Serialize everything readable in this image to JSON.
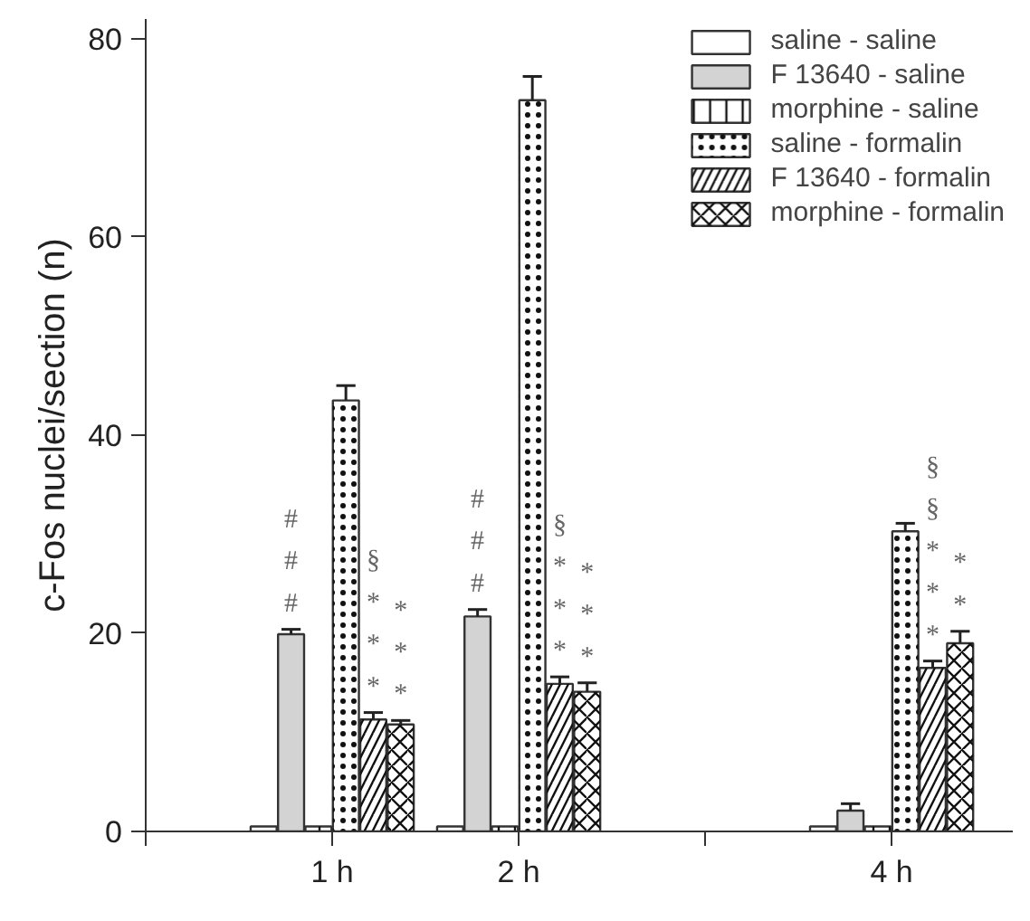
{
  "chart_data": {
    "type": "bar",
    "ylabel": "c-Fos nuclei/section (n)",
    "x": [
      1,
      2,
      4
    ],
    "xlim": [
      0,
      4.65
    ],
    "xticks": [
      {
        "value": 0,
        "label": null
      },
      {
        "value": 1,
        "label": "1 h"
      },
      {
        "value": 2,
        "label": "2 h"
      },
      {
        "value": 3,
        "label": null
      },
      {
        "value": 4,
        "label": "4 h"
      }
    ],
    "ylim": [
      0,
      82
    ],
    "yticks": [
      0,
      20,
      40,
      60,
      80
    ],
    "grid": false,
    "legend": "top right",
    "series": [
      {
        "name": "saline - saline",
        "color": "#ffffff",
        "values": [
          0.5,
          0.5,
          0.5
        ]
      },
      {
        "name": "F 13640 - saline",
        "color": "#d3d3d3",
        "values": [
          19.9,
          21.7,
          2.1
        ],
        "errors": [
          [
            19.9,
            20.4
          ],
          [
            21.7,
            22.4
          ],
          [
            2.1,
            2.8
          ]
        ]
      },
      {
        "name": "morphine - saline",
        "color": "#ffffff",
        "values": [
          0.5,
          0.5,
          0.5
        ]
      },
      {
        "name": "saline - formalin",
        "color": "#ffffff",
        "values": [
          43.5,
          73.8,
          30.3
        ],
        "errors": [
          [
            43.5,
            45.0
          ],
          [
            73.8,
            76.2
          ],
          [
            30.3,
            31.1
          ]
        ]
      },
      {
        "name": "F 13640 - formalin",
        "color": "#ffffff",
        "values": [
          11.3,
          14.9,
          16.5
        ],
        "errors": [
          [
            11.3,
            12.0
          ],
          [
            14.9,
            15.6
          ],
          [
            16.5,
            17.2
          ]
        ]
      },
      {
        "name": "morphine - formalin",
        "color": "#ffffff",
        "values": [
          10.8,
          14.1,
          19.0
        ],
        "errors": [
          [
            10.8,
            11.2
          ],
          [
            14.1,
            15.0
          ],
          [
            19.0,
            20.2
          ]
        ]
      }
    ],
    "annotations": [
      "#\n#\n#",
      "§\n*\n*\n*",
      "*\n*\n*",
      "#\n#\n#",
      "§\n*\n*\n*",
      "*\n*\n*",
      "§\n§\n*\n*\n*",
      "*\n*"
    ]
  }
}
